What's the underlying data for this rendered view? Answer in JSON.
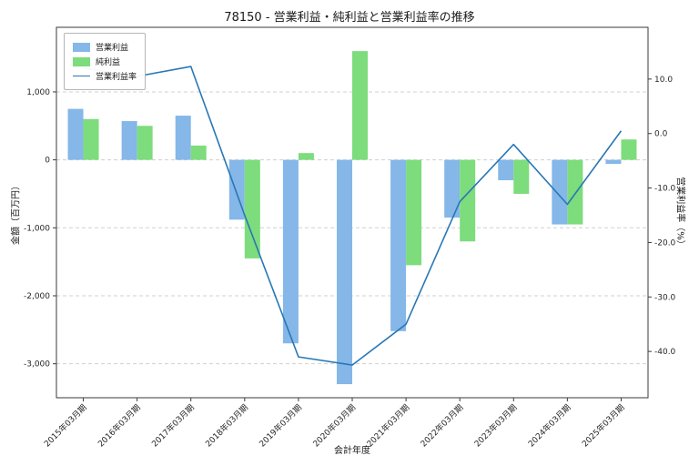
{
  "window": {
    "title": "78150 - 営業利益・純利益と営業利益率の推移"
  },
  "chart_data": {
    "type": "combo",
    "title": "78150 - 営業利益・純利益と営業利益率の推移",
    "xlabel": "会計年度",
    "ylabel_left": "金額（百万円）",
    "ylabel_right": "営業利益率（%）",
    "legend_position": "upper-left",
    "grid": "horizontal-dashed",
    "categories": [
      "2015年03月期",
      "2016年03月期",
      "2017年03月期",
      "2018年03月期",
      "2019年03月期",
      "2020年03月期",
      "2021年03月期",
      "2022年03月期",
      "2023年03月期",
      "2024年03月期",
      "2025年03月期"
    ],
    "series": [
      {
        "name": "営業利益",
        "type": "bar",
        "axis": "left",
        "color": "#85b7e8",
        "values": [
          750,
          570,
          650,
          -880,
          -2700,
          -3300,
          -2520,
          -850,
          -300,
          -950,
          -60
        ]
      },
      {
        "name": "純利益",
        "type": "bar",
        "axis": "left",
        "color": "#7ddc7c",
        "values": [
          600,
          500,
          210,
          -1450,
          100,
          1600,
          -1550,
          -1200,
          -500,
          -950,
          300
        ]
      },
      {
        "name": "営業利益率",
        "type": "line",
        "axis": "right",
        "color": "#2878b5",
        "values": [
          12.0,
          10.5,
          12.3,
          -15.0,
          -41.0,
          -42.5,
          -35.0,
          -12.5,
          -2.0,
          -13.0,
          0.5
        ]
      }
    ],
    "left_ticks": [
      1000,
      0,
      -1000,
      -2000,
      -3000
    ],
    "right_ticks": [
      10,
      0,
      -10,
      -20,
      -30,
      -40
    ],
    "left_ylim": [
      -3500,
      1950
    ],
    "right_ylim": [
      -48.5,
      19.5
    ],
    "colors": {
      "bar_operating": "#85b7e8",
      "bar_net": "#7ddc7c",
      "rate_line": "#2878b5",
      "grid": "#d0d0d0",
      "spine": "#3a3a3a"
    }
  }
}
